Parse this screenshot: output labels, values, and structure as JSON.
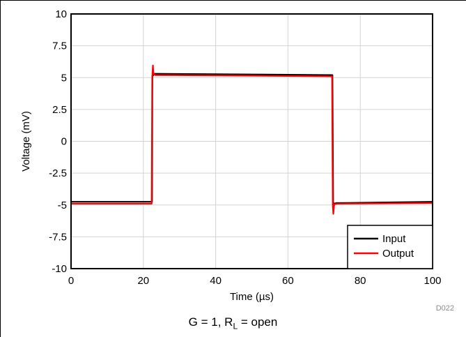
{
  "chart_data": {
    "type": "line",
    "title": "",
    "xlabel": "Time (µs)",
    "ylabel": "Voltage (mV)",
    "xlim": [
      0,
      100
    ],
    "ylim": [
      -10,
      10
    ],
    "xticks": [
      0,
      20,
      40,
      60,
      80,
      100
    ],
    "yticks": [
      -10,
      -7.5,
      -5,
      -2.5,
      0,
      2.5,
      5,
      7.5,
      10
    ],
    "xtick_labels": [
      "0",
      "20",
      "40",
      "60",
      "80",
      "100"
    ],
    "ytick_labels": [
      "-10",
      "-7.5",
      "-5",
      "-2.5",
      "0",
      "2.5",
      "5",
      "7.5",
      "10"
    ],
    "grid": true,
    "legend_position": "bottom-right",
    "series": [
      {
        "name": "Input",
        "color": "#000000",
        "x": [
          0,
          22.4,
          22.5,
          23.0,
          50,
          72.3,
          72.5,
          72.7,
          73.5,
          100
        ],
        "y": [
          -4.75,
          -4.75,
          5.1,
          5.3,
          5.25,
          5.2,
          -4.8,
          -4.9,
          -4.85,
          -4.75
        ]
      },
      {
        "name": "Output",
        "color": "#ff0000",
        "x": [
          0,
          22.3,
          22.45,
          22.65,
          22.8,
          23.3,
          50,
          72.2,
          72.4,
          72.55,
          72.8,
          73.5,
          100
        ],
        "y": [
          -4.9,
          -4.9,
          5.0,
          5.95,
          5.3,
          5.2,
          5.15,
          5.1,
          -5.0,
          -5.7,
          -4.95,
          -4.9,
          -4.85
        ]
      }
    ]
  },
  "figure_code": "D022",
  "caption": {
    "prefix": "G = 1, R",
    "subscript": "L",
    "suffix": " = open"
  }
}
